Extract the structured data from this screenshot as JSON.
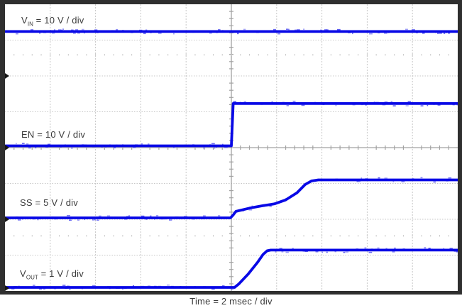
{
  "figure": {
    "background": "#ffffff",
    "frame_color": "#2f2f2f"
  },
  "colors": {
    "trace": "#0808e6",
    "trace_noise": "#5050f0",
    "grid_dashed": "#c7c7c7",
    "grid_axis": "#a2a2a2",
    "minor_row": "#c9c9c9",
    "label_text": "#3a3a3a",
    "marker": "#151515"
  },
  "chart_data": {
    "type": "line",
    "title": "",
    "xlabel": "Time = 2 msec / div",
    "ylabel": "",
    "x_axis": {
      "divisions": 10,
      "per_division": "2 msec"
    },
    "y_axis": {
      "divisions": 8
    },
    "grid": "dashed major gridlines; solid center axes with minor ticks",
    "legend_position": "labels inside plot, left side",
    "trigger_xdiv": 5,
    "ground_marker_ydivs": [
      2,
      4,
      6,
      7.92
    ],
    "minor_tick_row_ydivs": [
      1.41,
      6.46
    ],
    "traces": [
      {
        "name": "VIN",
        "label": {
          "prefix": "V",
          "sub": "IN",
          "suffix": " = 10 V / div",
          "text": "VIN = 10 V / div"
        },
        "scale_per_division": "10 V",
        "ground_ref_ydiv": 2,
        "points_div": [
          [
            0,
            0.76
          ],
          [
            10,
            0.76
          ]
        ]
      },
      {
        "name": "EN",
        "label": {
          "prefix": "EN",
          "sub": "",
          "suffix": " = 10 V / div",
          "text": "EN = 10 V / div"
        },
        "scale_per_division": "10 V",
        "ground_ref_ydiv": 4,
        "points_div": [
          [
            0,
            3.95
          ],
          [
            5.0,
            3.95
          ],
          [
            5.04,
            2.77
          ],
          [
            10,
            2.77
          ]
        ]
      },
      {
        "name": "SS",
        "label": {
          "prefix": "SS",
          "sub": "",
          "suffix": " = 5 V / div",
          "text": "SS = 5 V / div"
        },
        "scale_per_division": "5 V",
        "ground_ref_ydiv": 6,
        "points_div": [
          [
            0,
            5.96
          ],
          [
            4.98,
            5.96
          ],
          [
            5.04,
            5.88
          ],
          [
            5.1,
            5.78
          ],
          [
            5.4,
            5.69
          ],
          [
            5.7,
            5.62
          ],
          [
            5.95,
            5.57
          ],
          [
            6.2,
            5.46
          ],
          [
            6.45,
            5.26
          ],
          [
            6.63,
            5.03
          ],
          [
            6.77,
            4.93
          ],
          [
            6.92,
            4.9
          ],
          [
            10,
            4.9
          ]
        ]
      },
      {
        "name": "VOUT",
        "label": {
          "prefix": "V",
          "sub": "OUT",
          "suffix": " = 1 V / div",
          "text": "VOUT = 1 V / div"
        },
        "scale_per_division": "1 V",
        "ground_ref_ydiv": 8,
        "points_div": [
          [
            0,
            7.9
          ],
          [
            5.07,
            7.9
          ],
          [
            5.16,
            7.81
          ],
          [
            5.37,
            7.53
          ],
          [
            5.58,
            7.2
          ],
          [
            5.7,
            6.98
          ],
          [
            5.79,
            6.88
          ],
          [
            5.87,
            6.86
          ],
          [
            10,
            6.86
          ]
        ]
      }
    ]
  }
}
